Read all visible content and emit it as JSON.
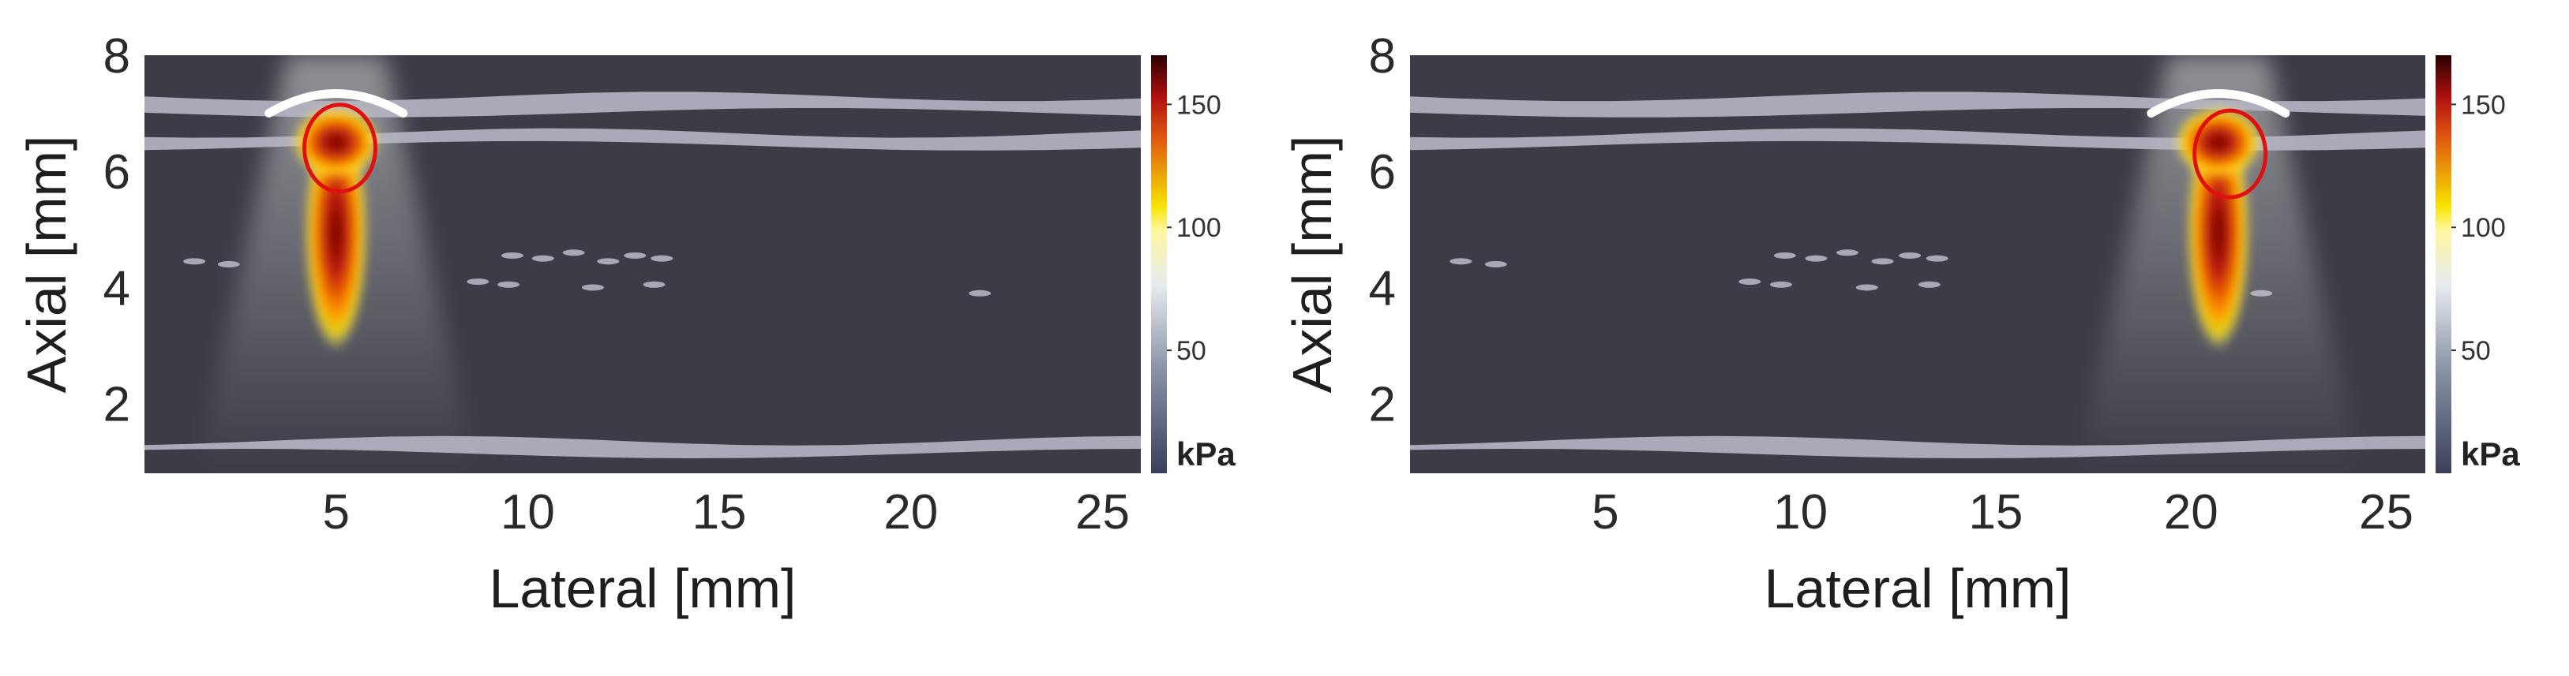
{
  "chart_data": [
    {
      "type": "heatmap",
      "xlabel": "Lateral [mm]",
      "ylabel": "Axial [mm]",
      "xticks": [
        5,
        10,
        15,
        20,
        25
      ],
      "yticks": [
        2,
        4,
        6,
        8
      ],
      "xlim": [
        0,
        26
      ],
      "ylim": [
        0.8,
        8
      ],
      "colorbar": {
        "unit": "kPa",
        "ticks": [
          50,
          100,
          150
        ],
        "range": [
          0,
          170
        ]
      },
      "transducer_center_x": 5,
      "transducer_center_y": 7.3,
      "focal_ellipse_center": [
        5.1,
        6.4
      ],
      "peak_pressure_kpa": 170
    },
    {
      "type": "heatmap",
      "xlabel": "Lateral [mm]",
      "ylabel": "Axial [mm]",
      "xticks": [
        5,
        10,
        15,
        20,
        25
      ],
      "yticks": [
        2,
        4,
        6,
        8
      ],
      "xlim": [
        0,
        26
      ],
      "ylim": [
        0.8,
        8
      ],
      "colorbar": {
        "unit": "kPa",
        "ticks": [
          50,
          100,
          150
        ],
        "range": [
          0,
          170
        ]
      },
      "transducer_center_x": 20.7,
      "transducer_center_y": 7.3,
      "focal_ellipse_center": [
        21.0,
        6.3
      ],
      "peak_pressure_kpa": 170
    }
  ]
}
